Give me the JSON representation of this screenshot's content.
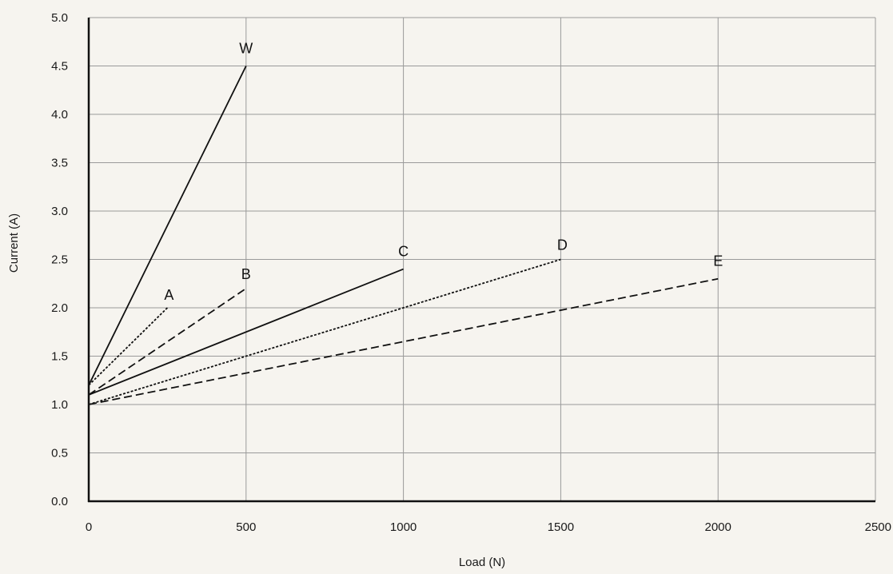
{
  "chart_data": {
    "type": "line",
    "title": "",
    "xlabel": "Load (N)",
    "ylabel": "Current (A)",
    "xlim": [
      0,
      2500
    ],
    "ylim": [
      0,
      5
    ],
    "x_ticks": [
      "0",
      "500",
      "1000",
      "1500",
      "2000",
      "2500"
    ],
    "y_ticks": [
      "0.0",
      "0.5",
      "1.0",
      "1.5",
      "2.0",
      "2.5",
      "3.0",
      "3.5",
      "4.0",
      "4.5",
      "5.0"
    ],
    "grid": true,
    "legend": "none",
    "series": [
      {
        "name": "W",
        "style": "solid",
        "points": [
          [
            0,
            1.2
          ],
          [
            500,
            4.5
          ]
        ]
      },
      {
        "name": "A",
        "style": "dotted",
        "points": [
          [
            0,
            1.2
          ],
          [
            250,
            2.0
          ]
        ]
      },
      {
        "name": "B",
        "style": "dashed",
        "points": [
          [
            0,
            1.1
          ],
          [
            500,
            2.2
          ]
        ]
      },
      {
        "name": "C",
        "style": "solid",
        "points": [
          [
            0,
            1.1
          ],
          [
            1000,
            2.4
          ]
        ]
      },
      {
        "name": "D",
        "style": "dotted",
        "points": [
          [
            0,
            1.0
          ],
          [
            1500,
            2.5
          ]
        ]
      },
      {
        "name": "E",
        "style": "dashed",
        "points": [
          [
            0,
            1.0
          ],
          [
            2000,
            2.3
          ]
        ]
      }
    ],
    "colors": {
      "background": "#f6f4ef",
      "grid": "#9a9a9a",
      "axis": "#111111",
      "line": "#111111",
      "text": "#1a1a1a"
    }
  }
}
